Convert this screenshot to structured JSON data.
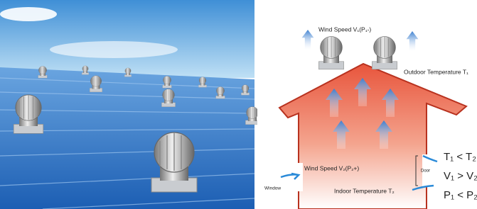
{
  "diagram": {
    "wind_top": "Wind Speed V₁(P₁-)",
    "outdoor": "Outdoor Temperature T₁",
    "wind_bottom": "Wind Speed V₂(P₂+)",
    "door": "Door",
    "window": "Window",
    "indoor": "Indoor Temperature T₂",
    "relations": [
      "T₁ < T₂",
      "V₁ > V₂",
      "P₁ < P₂"
    ]
  }
}
